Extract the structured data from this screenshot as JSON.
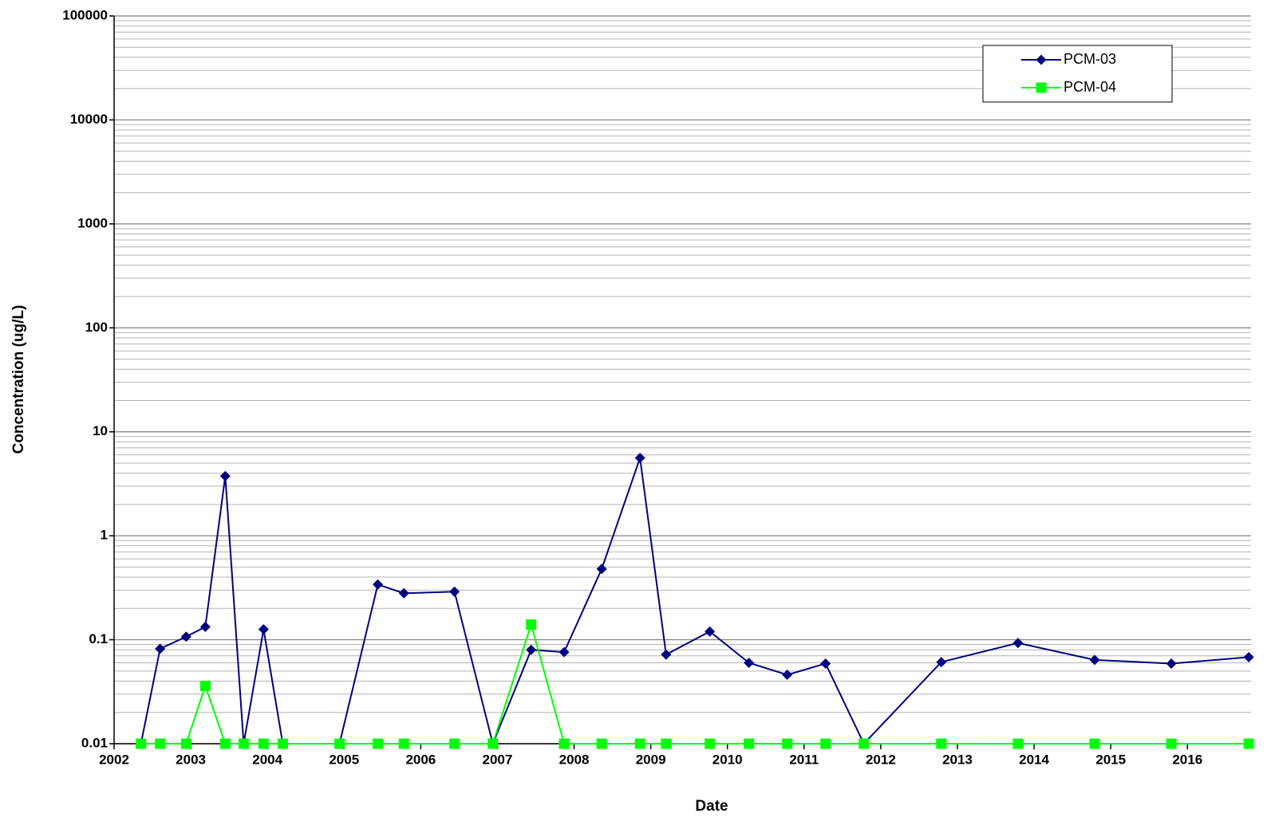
{
  "chart_data": {
    "type": "line",
    "xlabel": "Date",
    "ylabel": "Concentration (ug/L)",
    "log_y": true,
    "grid": true,
    "minor_grid": true,
    "legend": "upper right",
    "x": [
      2002.35,
      2002.6,
      2002.94,
      2003.19,
      2003.45,
      2003.69,
      2003.95,
      2004.2,
      2004.94,
      2005.44,
      2005.78,
      2006.44,
      2006.94,
      2007.44,
      2007.87,
      2008.36,
      2008.86,
      2009.2,
      2009.77,
      2010.28,
      2010.78,
      2011.28,
      2011.78,
      2012.79,
      2013.79,
      2014.79,
      2015.79,
      2016.8
    ],
    "series": [
      {
        "name": "PCM-03",
        "color": "#000080",
        "marker": "diamond",
        "values": [
          0.01,
          0.082,
          0.107,
          0.133,
          3.75,
          0.01,
          0.126,
          0.01,
          0.01,
          0.34,
          0.28,
          0.29,
          0.01,
          0.08,
          0.076,
          0.48,
          5.6,
          0.072,
          0.12,
          0.06,
          0.046,
          0.059,
          0.01,
          0.061,
          0.093,
          0.064,
          0.059,
          0.068
        ]
      },
      {
        "name": "PCM-04",
        "color": "#00ff00",
        "marker": "square",
        "values": [
          0.01,
          0.01,
          0.01,
          0.036,
          0.01,
          0.01,
          0.01,
          0.01,
          0.01,
          0.01,
          0.01,
          0.01,
          0.01,
          0.14,
          0.01,
          0.01,
          0.01,
          0.01,
          0.01,
          0.01,
          0.01,
          0.01,
          0.01,
          0.01,
          0.01,
          0.01,
          0.01,
          0.01
        ]
      }
    ],
    "xlim": [
      2002,
      2016.83
    ],
    "xticks": [
      2002,
      2003,
      2004,
      2005,
      2006,
      2007,
      2008,
      2009,
      2010,
      2011,
      2012,
      2013,
      2014,
      2015,
      2016
    ],
    "ylim": [
      0.01,
      100000
    ],
    "yticks": [
      0.01,
      0.1,
      1,
      10,
      100,
      1000,
      10000,
      100000
    ]
  }
}
